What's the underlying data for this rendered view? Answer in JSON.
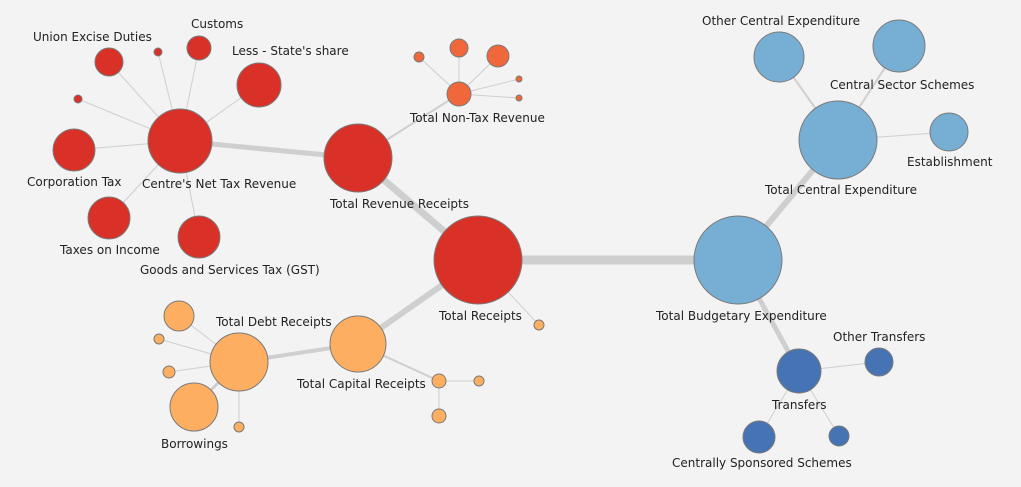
{
  "colors": {
    "receipts_red": "#d93127",
    "non_tax_orange": "#f0673c",
    "capital_orange": "#fdae60",
    "expenditure_light_blue": "#77aed4",
    "transfers_blue": "#4573b4",
    "link_gray": "#cfcfcf",
    "node_stroke": "#7a7a7a"
  },
  "labels": {
    "union_excise_duties": "Union Excise Duties",
    "customs": "Customs",
    "less_state_share": "Less - State's share",
    "corporation_tax": "Corporation Tax",
    "centres_net_tax_revenue": "Centre's Net Tax Revenue",
    "taxes_on_income": "Taxes on Income",
    "gst": "Goods and Services Tax (GST)",
    "total_non_tax_revenue": "Total Non-Tax Revenue",
    "total_revenue_receipts": "Total Revenue Receipts",
    "total_receipts": "Total Receipts",
    "total_debt_receipts": "Total Debt Receipts",
    "total_capital_receipts": "Total Capital Receipts",
    "borrowings": "Borrowings",
    "other_central_expenditure": "Other Central Expenditure",
    "central_sector_schemes": "Central Sector Schemes",
    "establishment": "Establishment",
    "total_central_expenditure": "Total Central Expenditure",
    "total_budgetary_expenditure": "Total Budgetary Expenditure",
    "other_transfers": "Other Transfers",
    "transfers": "Transfers",
    "centrally_sponsored_schemes": "Centrally Sponsored Schemes"
  }
}
